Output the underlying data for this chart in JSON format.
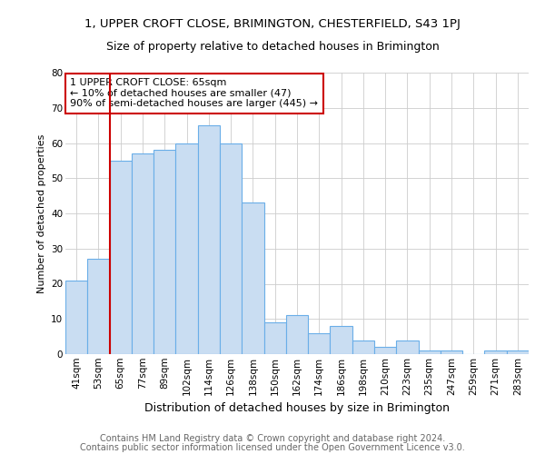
{
  "title": "1, UPPER CROFT CLOSE, BRIMINGTON, CHESTERFIELD, S43 1PJ",
  "subtitle": "Size of property relative to detached houses in Brimington",
  "xlabel": "Distribution of detached houses by size in Brimington",
  "ylabel": "Number of detached properties",
  "categories": [
    "41sqm",
    "53sqm",
    "65sqm",
    "77sqm",
    "89sqm",
    "102sqm",
    "114sqm",
    "126sqm",
    "138sqm",
    "150sqm",
    "162sqm",
    "174sqm",
    "186sqm",
    "198sqm",
    "210sqm",
    "223sqm",
    "235sqm",
    "247sqm",
    "259sqm",
    "271sqm",
    "283sqm"
  ],
  "values": [
    21,
    27,
    55,
    57,
    58,
    60,
    65,
    60,
    43,
    9,
    11,
    6,
    8,
    4,
    2,
    4,
    1,
    1,
    0,
    1,
    1
  ],
  "bar_color": "#c9ddf2",
  "bar_edge_color": "#6aaee8",
  "highlight_index": 2,
  "red_line_index": 2,
  "ylim": [
    0,
    80
  ],
  "yticks": [
    0,
    10,
    20,
    30,
    40,
    50,
    60,
    70,
    80
  ],
  "annotation_text": "1 UPPER CROFT CLOSE: 65sqm\n← 10% of detached houses are smaller (47)\n90% of semi-detached houses are larger (445) →",
  "annotation_box_color": "#ffffff",
  "annotation_box_edge_color": "#cc0000",
  "red_line_color": "#cc0000",
  "footer1": "Contains HM Land Registry data © Crown copyright and database right 2024.",
  "footer2": "Contains public sector information licensed under the Open Government Licence v3.0.",
  "background_color": "#ffffff",
  "grid_color": "#cccccc",
  "title_fontsize": 9.5,
  "subtitle_fontsize": 9,
  "xlabel_fontsize": 9,
  "ylabel_fontsize": 8,
  "tick_fontsize": 7.5,
  "footer_fontsize": 7,
  "annotation_fontsize": 8
}
